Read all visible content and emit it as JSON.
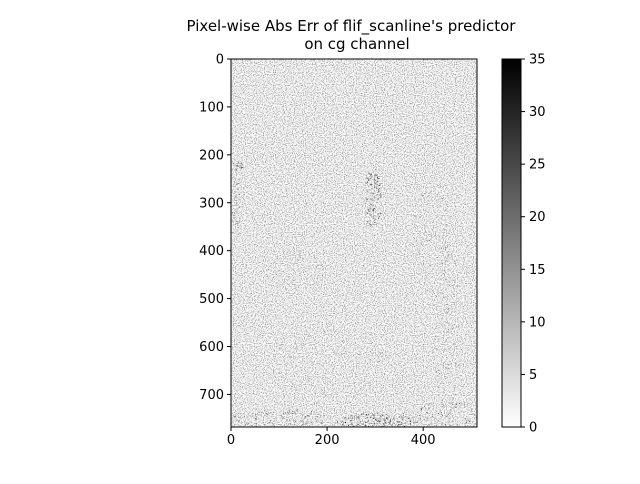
{
  "chart_data": {
    "type": "heatmap",
    "title_line1": "Pixel-wise Abs Err of flif_scanline's predictor",
    "title_line2": "on cg channel",
    "xlabel": "",
    "ylabel": "",
    "colormap": "gray_r",
    "image": {
      "width": 512,
      "height": 768,
      "xlim": [
        0,
        512
      ],
      "ylim": [
        768,
        0
      ],
      "y_axis_inverted": true
    },
    "x_ticks": [
      0,
      200,
      400
    ],
    "x_tick_labels": [
      "0",
      "200",
      "400"
    ],
    "y_ticks": [
      0,
      100,
      200,
      300,
      400,
      500,
      600,
      700
    ],
    "y_tick_labels": [
      "0",
      "100",
      "200",
      "300",
      "400",
      "500",
      "600",
      "700"
    ],
    "colorbar": {
      "range": [
        0,
        35
      ],
      "ticks": [
        0,
        5,
        10,
        15,
        20,
        25,
        30,
        35
      ],
      "tick_labels": [
        "0",
        "5",
        "10",
        "15",
        "20",
        "25",
        "30",
        "35"
      ],
      "color_low": "#ffffff",
      "color_high": "#000000"
    },
    "grid": false,
    "legend": "none"
  }
}
